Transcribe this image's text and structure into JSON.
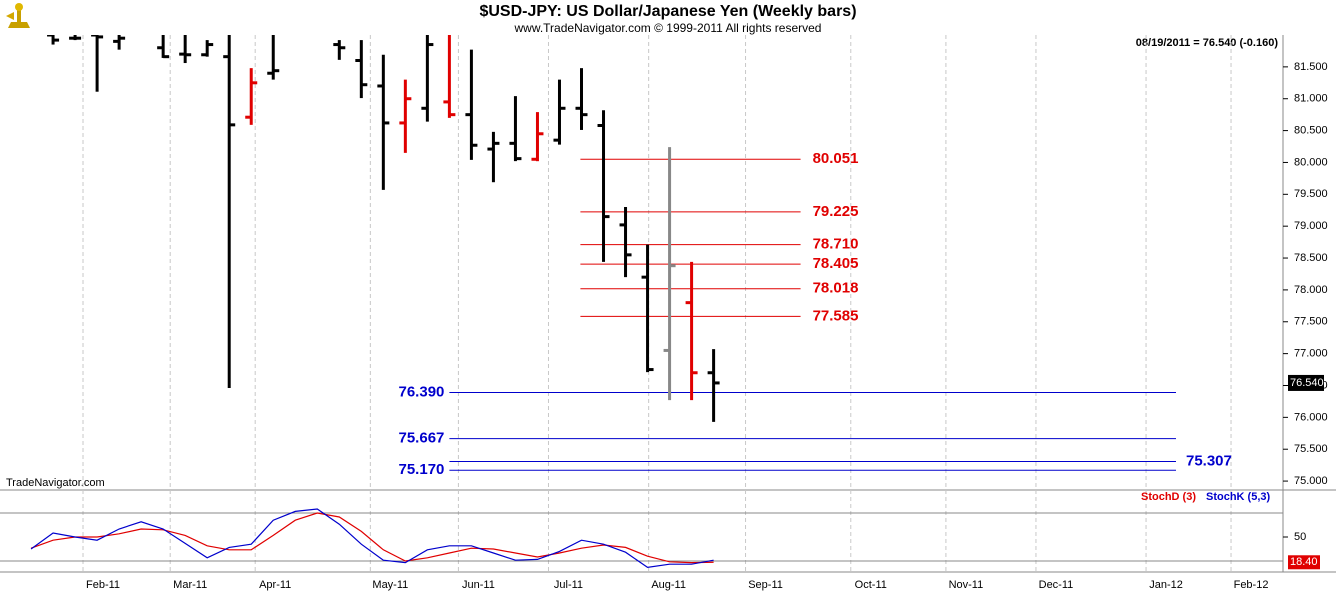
{
  "chart_data": [
    {
      "type": "ohlc",
      "title": "$USD-JPY:  US Dollar/Japanese Yen  (Weekly bars)",
      "subtitle": "www.TradeNavigator.com © 1999-2011 All rights reserved",
      "header_note": "08/19/2011 = 76.540 (-0.160)",
      "watermark": "TradeNavigator.com",
      "last_price": {
        "value": 76.54,
        "label": "76.540"
      },
      "x": [
        0,
        1,
        2,
        3,
        5,
        6,
        7,
        8,
        9,
        10,
        13,
        14,
        15,
        16,
        17,
        18,
        19,
        20,
        21,
        22,
        23,
        24,
        25,
        26,
        27,
        28,
        29,
        30
      ],
      "open": [
        82.0,
        81.95,
        82.0,
        81.9,
        81.8,
        81.7,
        81.69,
        81.66,
        80.71,
        81.4,
        81.85,
        81.6,
        81.2,
        80.62,
        80.85,
        80.95,
        80.75,
        80.21,
        80.3,
        80.05,
        80.35,
        80.85,
        80.58,
        79.02,
        78.2,
        77.05,
        77.8,
        76.7
      ],
      "high": [
        82.1,
        82.1,
        82.1,
        82.1,
        82.1,
        82.1,
        81.92,
        82.05,
        81.48,
        82.05,
        81.92,
        81.92,
        81.69,
        81.3,
        82.0,
        82.0,
        81.77,
        80.48,
        81.04,
        80.79,
        81.3,
        81.48,
        80.82,
        79.3,
        78.71,
        80.24,
        78.44,
        77.07
      ],
      "low": [
        81.85,
        81.92,
        81.11,
        81.77,
        81.64,
        81.56,
        81.66,
        76.46,
        80.59,
        81.3,
        81.61,
        81.01,
        79.57,
        80.15,
        80.64,
        80.7,
        80.04,
        79.69,
        80.02,
        80.02,
        80.28,
        80.51,
        78.44,
        78.2,
        76.71,
        76.27,
        76.27,
        75.93
      ],
      "close": [
        81.92,
        81.95,
        81.97,
        81.95,
        81.66,
        81.69,
        81.85,
        80.59,
        81.25,
        81.44,
        81.8,
        81.22,
        80.62,
        81.0,
        81.85,
        80.75,
        80.27,
        80.3,
        80.06,
        80.45,
        80.85,
        80.75,
        79.15,
        78.55,
        76.75,
        78.38,
        76.7,
        76.54
      ],
      "colors": [
        "#000000",
        "#000000",
        "#000000",
        "#000000",
        "#000000",
        "#000000",
        "#000000",
        "#000000",
        "#e00000",
        "#000000",
        "#000000",
        "#000000",
        "#000000",
        "#e00000",
        "#000000",
        "#e00000",
        "#000000",
        "#000000",
        "#000000",
        "#e00000",
        "#000000",
        "#000000",
        "#000000",
        "#000000",
        "#000000",
        "#888888",
        "#e00000",
        "#000000"
      ],
      "levels": [
        {
          "value": 80.051,
          "color": "#e00000",
          "side": "right"
        },
        {
          "value": 79.225,
          "color": "#e00000",
          "side": "right"
        },
        {
          "value": 78.71,
          "label": "78.710",
          "color": "#e00000",
          "side": "right"
        },
        {
          "value": 78.405,
          "color": "#e00000",
          "side": "right"
        },
        {
          "value": 78.018,
          "color": "#e00000",
          "side": "right"
        },
        {
          "value": 77.585,
          "color": "#e00000",
          "side": "right"
        },
        {
          "value": 76.39,
          "label": "76.390",
          "color": "#0000cc",
          "side": "left"
        },
        {
          "value": 75.667,
          "color": "#0000cc",
          "side": "left"
        },
        {
          "value": 75.307,
          "color": "#0000cc",
          "side": "far-right"
        },
        {
          "value": 75.17,
          "label": "75.170",
          "color": "#0000cc",
          "side": "left"
        }
      ],
      "xlim": [
        -2.41,
        55.86
      ],
      "xticks": [
        {
          "value": 1.36,
          "label": "Feb-11"
        },
        {
          "value": 5.32,
          "label": "Mar-11"
        },
        {
          "value": 9.18,
          "label": "Apr-11"
        },
        {
          "value": 14.41,
          "label": "May-11"
        },
        {
          "value": 18.41,
          "label": "Jun-11"
        },
        {
          "value": 22.5,
          "label": "Jul-11"
        },
        {
          "value": 27.05,
          "label": "Aug-11"
        },
        {
          "value": 31.45,
          "label": "Sep-11"
        },
        {
          "value": 36.23,
          "label": "Oct-11"
        },
        {
          "value": 40.55,
          "label": "Nov-11"
        },
        {
          "value": 44.64,
          "label": "Dec-11"
        },
        {
          "value": 49.64,
          "label": "Jan-12"
        },
        {
          "value": 53.5,
          "label": "Feb-12"
        }
      ],
      "ylim": [
        74.86,
        82.0
      ],
      "yticks": [
        {
          "value": 75,
          "label": "75.000"
        },
        {
          "value": 75.5,
          "label": "75.500"
        },
        {
          "value": 76,
          "label": "76.000"
        },
        {
          "value": 76.5,
          "label": "76.500"
        },
        {
          "value": 77,
          "label": "77.000"
        },
        {
          "value": 77.5,
          "label": "77.500"
        },
        {
          "value": 78,
          "label": "78.000"
        },
        {
          "value": 78.5,
          "label": "78.500"
        },
        {
          "value": 79,
          "label": "79.000"
        },
        {
          "value": 79.5,
          "label": "79.500"
        },
        {
          "value": 80,
          "label": "80.000"
        },
        {
          "value": 80.5,
          "label": "80.500"
        },
        {
          "value": 81,
          "label": "81.000"
        },
        {
          "value": 81.5,
          "label": "81.500"
        }
      ],
      "grid": "x"
    },
    {
      "type": "line",
      "x": [
        -1,
        0,
        1,
        2,
        3,
        4,
        5,
        6,
        7,
        8,
        9,
        10,
        11,
        12,
        13,
        14,
        15,
        16,
        17,
        18,
        19,
        20,
        21,
        22,
        23,
        24,
        25,
        26,
        27,
        28,
        29,
        30
      ],
      "series": [
        {
          "name": "StochD (3)",
          "color": "#e00000",
          "values": [
            36,
            46,
            50,
            50,
            54,
            60,
            59,
            52,
            39,
            34,
            34,
            52,
            71,
            80,
            75,
            57,
            34,
            20,
            24,
            30,
            36,
            35,
            30,
            25,
            30,
            36,
            40,
            37,
            26,
            19,
            18,
            18.4
          ],
          "value_labels": [
            null,
            null,
            null,
            null,
            null,
            null,
            null,
            null,
            null,
            null,
            null,
            null,
            null,
            null,
            null,
            null,
            null,
            null,
            null,
            null,
            null,
            null,
            null,
            null,
            null,
            null,
            null,
            null,
            null,
            null,
            null,
            "18.40"
          ]
        },
        {
          "name": "StochK (5,3)",
          "color": "#0000cc",
          "values": [
            35,
            55,
            50,
            46,
            60,
            69,
            60,
            42,
            24,
            37,
            41,
            71,
            82,
            85,
            66,
            41,
            21,
            18,
            34,
            39,
            39,
            30,
            21,
            22,
            32,
            46,
            41,
            31,
            12,
            16,
            16,
            21
          ]
        }
      ],
      "ylim": [
        8.75,
        108.75
      ],
      "yticks": [
        50
      ],
      "levels": [
        20,
        80
      ]
    }
  ]
}
